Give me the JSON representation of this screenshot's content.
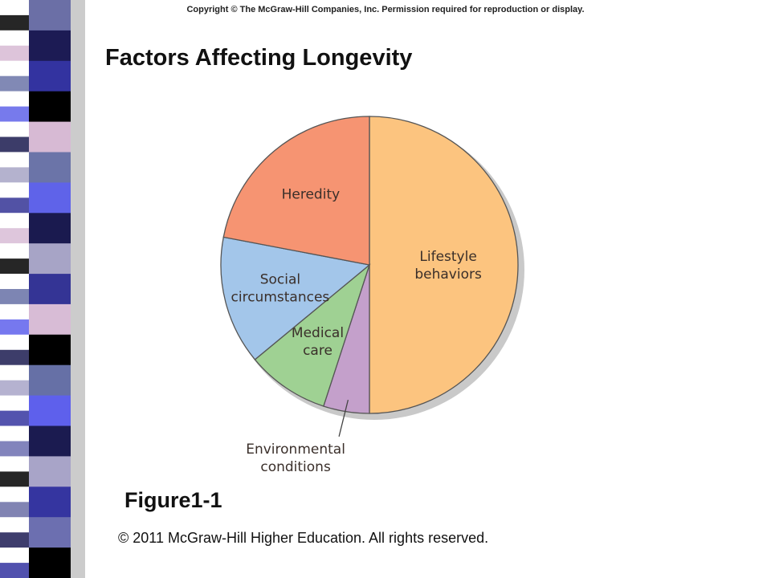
{
  "header": {
    "copyright_notice": "Copyright © The McGraw-Hill Companies, Inc. Permission required for reproduction or display."
  },
  "slide": {
    "title": "Factors Affecting Longevity",
    "figure_label": "Figure1-1",
    "footer": "©  2011 McGraw-Hill Higher Education. All rights reserved."
  },
  "theme": {
    "strip_colors": [
      "#6b6fa6",
      "#1c1b54",
      "#3333a0",
      "#000000",
      "#d7bad4",
      "#6b74a8",
      "#5f63e9",
      "#1a1a4f",
      "#a7a4c6",
      "#343495",
      "#d8bcd6",
      "#000000",
      "#6670a6",
      "#5e60ec",
      "#1b1b50",
      "#a8a4c8",
      "#3535a0",
      "#6c6fb0",
      "#000000"
    ]
  },
  "chart_data": {
    "type": "pie",
    "title": "",
    "start_angle_deg": 0,
    "direction": "clockwise",
    "slices": [
      {
        "label_lines": [
          "Lifestyle",
          "behaviors"
        ],
        "value": 50,
        "color": "#fcc47f"
      },
      {
        "label_lines": [
          "Environmental",
          "conditions"
        ],
        "value": 5,
        "color": "#c4a0cb",
        "callout": true
      },
      {
        "label_lines": [
          "Medical",
          "care"
        ],
        "value": 9,
        "color": "#9fd193"
      },
      {
        "label_lines": [
          "Social",
          "circumstances"
        ],
        "value": 14,
        "color": "#a3c6ea"
      },
      {
        "label_lines": [
          "Heredity"
        ],
        "value": 22,
        "color": "#f69472"
      }
    ]
  }
}
